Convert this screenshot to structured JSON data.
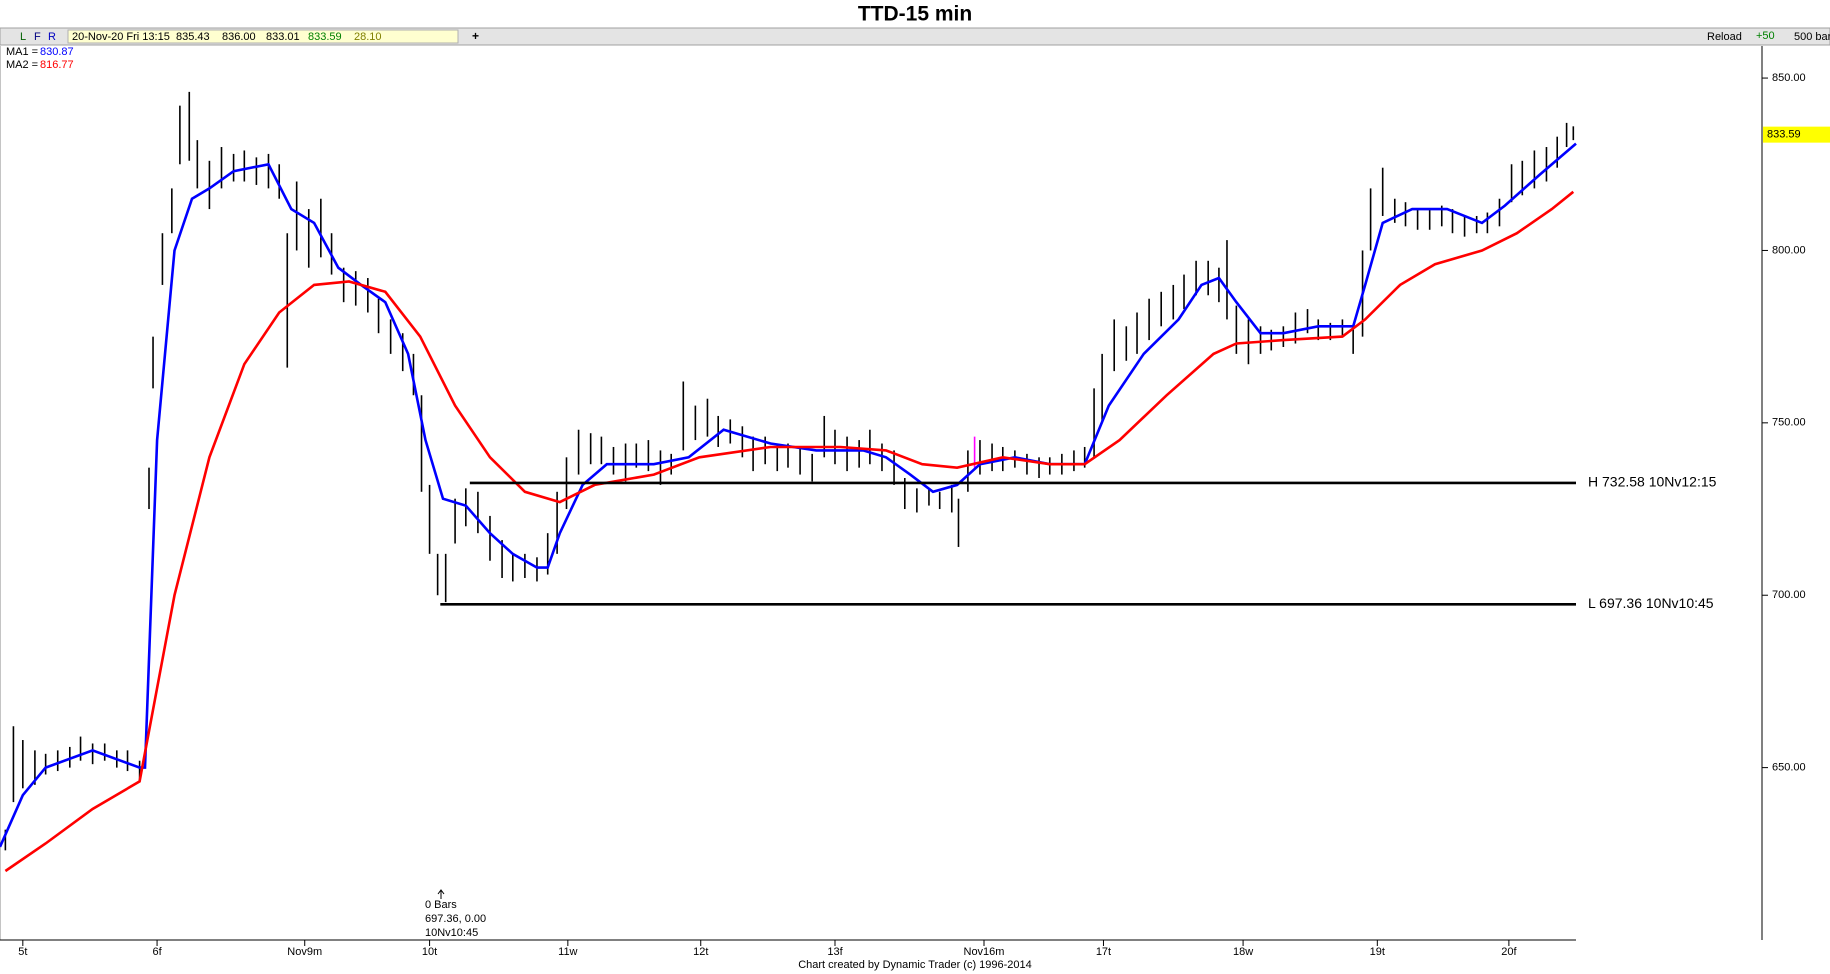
{
  "header": {
    "title": "TTD-15 min"
  },
  "toolbar": {
    "buttons": [
      "L",
      "F",
      "R"
    ],
    "info": [
      "20-Nov-20 Fri 13:15",
      "835.43",
      "836.00",
      "833.01",
      "833.59",
      "28.10"
    ],
    "add": "+",
    "reload": "Reload",
    "step": "+50",
    "bars": "500 bars"
  },
  "footer": "Chart created by Dynamic Trader  (c) 1996-2014",
  "chart_data": {
    "type": "ohlc",
    "xlim": [
      -0.17,
      11.57
    ],
    "ylim": [
      600,
      859.3
    ],
    "xticks": [
      {
        "value": 0,
        "label": "5t"
      },
      {
        "value": 1.0,
        "label": "6f"
      },
      {
        "value": 2.1,
        "label": "Nov9m"
      },
      {
        "value": 3.03,
        "label": "10t"
      },
      {
        "value": 4.06,
        "label": "11w"
      },
      {
        "value": 5.05,
        "label": "12t"
      },
      {
        "value": 6.05,
        "label": "13f"
      },
      {
        "value": 7.16,
        "label": "Nov16m"
      },
      {
        "value": 8.05,
        "label": "17t"
      },
      {
        "value": 9.09,
        "label": "18w"
      },
      {
        "value": 10.09,
        "label": "19t"
      },
      {
        "value": 11.07,
        "label": "20f"
      }
    ],
    "yticks": [
      {
        "value": 650,
        "label": "650.00"
      },
      {
        "value": 700,
        "label": "700.00"
      },
      {
        "value": 750,
        "label": "750.00"
      },
      {
        "value": 800,
        "label": "800.00"
      },
      {
        "value": 850,
        "label": "850.00"
      }
    ],
    "bar_color": "#000000",
    "bars": {
      "x": [
        -0.13,
        -0.07,
        0,
        0.09,
        0.17,
        0.26,
        0.35,
        0.43,
        0.52,
        0.61,
        0.7,
        0.78,
        0.87,
        0.94,
        0.97,
        1.04,
        1.11,
        1.17,
        1.24,
        1.3,
        1.39,
        1.48,
        1.57,
        1.65,
        1.74,
        1.83,
        1.91,
        1.97,
        2.04,
        2.13,
        2.22,
        2.3,
        2.39,
        2.48,
        2.57,
        2.65,
        2.74,
        2.83,
        2.91,
        2.97,
        3.03,
        3.09,
        3.15,
        3.22,
        3.3,
        3.39,
        3.48,
        3.57,
        3.65,
        3.74,
        3.83,
        3.91,
        3.98,
        4.05,
        4.14,
        4.23,
        4.31,
        4.4,
        4.49,
        4.57,
        4.66,
        4.75,
        4.83,
        4.92,
        5.01,
        5.1,
        5.18,
        5.27,
        5.36,
        5.44,
        5.53,
        5.62,
        5.7,
        5.79,
        5.88,
        5.97,
        6.05,
        6.14,
        6.23,
        6.31,
        6.4,
        6.49,
        6.57,
        6.66,
        6.75,
        6.83,
        6.92,
        6.97,
        7.04,
        7.13,
        7.22,
        7.3,
        7.39,
        7.48,
        7.57,
        7.65,
        7.74,
        7.83,
        7.91,
        7.98,
        8.04,
        8.13,
        8.22,
        8.3,
        8.39,
        8.48,
        8.57,
        8.65,
        8.74,
        8.83,
        8.91,
        8.97,
        9.04,
        9.13,
        9.22,
        9.3,
        9.39,
        9.48,
        9.57,
        9.65,
        9.74,
        9.83,
        9.91,
        9.98,
        10.04,
        10.13,
        10.22,
        10.3,
        10.39,
        10.48,
        10.57,
        10.65,
        10.74,
        10.83,
        10.91,
        11.0,
        11.09,
        11.17,
        11.26,
        11.35,
        11.43,
        11.5,
        11.55
      ],
      "high": [
        632,
        662,
        658,
        655,
        654,
        655,
        656,
        659,
        657,
        657,
        655,
        655,
        652,
        737,
        775,
        805,
        818,
        842,
        846,
        832,
        826,
        830,
        828,
        829,
        827,
        828,
        825,
        805,
        820,
        812,
        815,
        805,
        795,
        794,
        792,
        786,
        780,
        776,
        770,
        758,
        732,
        712,
        712,
        728,
        731,
        730,
        723,
        716,
        712,
        712,
        711,
        718,
        730,
        740,
        748,
        747,
        746,
        743,
        744,
        744,
        745,
        742,
        741,
        762,
        755,
        757,
        752,
        751,
        749,
        746,
        746,
        744,
        744,
        743,
        741,
        752,
        748,
        746,
        745,
        748,
        744,
        742,
        734,
        731,
        731,
        730,
        732,
        728,
        742,
        745,
        744,
        743,
        742,
        741,
        740,
        740,
        741,
        742,
        743,
        760,
        770,
        780,
        778,
        782,
        786,
        788,
        790,
        793,
        797,
        797,
        795,
        803,
        784,
        780,
        778,
        777,
        778,
        782,
        783,
        780,
        779,
        780,
        778,
        800,
        818,
        824,
        815,
        814,
        812,
        812,
        813,
        812,
        810,
        810,
        811,
        815,
        825,
        826,
        829,
        830,
        833,
        837,
        836
      ],
      "low": [
        626,
        640,
        644,
        645,
        648,
        649,
        650,
        652,
        651,
        652,
        650,
        649,
        646,
        725,
        760,
        790,
        805,
        825,
        826,
        818,
        812,
        818,
        820,
        820,
        819,
        818,
        815,
        766,
        800,
        795,
        798,
        793,
        785,
        784,
        782,
        776,
        770,
        765,
        758,
        730,
        712,
        700,
        698,
        715,
        720,
        718,
        710,
        705,
        704,
        705,
        704,
        706,
        712,
        725,
        735,
        738,
        738,
        735,
        733,
        737,
        736,
        732,
        735,
        742,
        745,
        746,
        743,
        744,
        740,
        736,
        738,
        736,
        737,
        735,
        733,
        740,
        738,
        736,
        737,
        738,
        736,
        732,
        725,
        724,
        726,
        725,
        724,
        714,
        730,
        735,
        736,
        736,
        737,
        735,
        734,
        735,
        735,
        736,
        737,
        740,
        750,
        765,
        768,
        770,
        774,
        778,
        780,
        783,
        787,
        787,
        785,
        780,
        770,
        767,
        770,
        771,
        772,
        773,
        776,
        774,
        774,
        775,
        770,
        775,
        800,
        810,
        808,
        807,
        806,
        806,
        807,
        805,
        804,
        805,
        805,
        807,
        814,
        816,
        818,
        820,
        824,
        830,
        832
      ]
    },
    "highlight_bar": {
      "x": 7.09,
      "high": 746,
      "low": 737,
      "color": "#ff00ff"
    },
    "series": [
      {
        "name": "MA1 =",
        "last_value": "830.87",
        "color": "#0000ff",
        "x": [
          -0.17,
          0,
          0.17,
          0.52,
          0.87,
          0.91,
          1.0,
          1.13,
          1.26,
          1.39,
          1.57,
          1.83,
          2.0,
          2.17,
          2.35,
          2.52,
          2.7,
          2.87,
          3.0,
          3.13,
          3.3,
          3.48,
          3.65,
          3.83,
          3.91,
          4.0,
          4.17,
          4.35,
          4.7,
          4.96,
          5.22,
          5.57,
          5.91,
          6.26,
          6.43,
          6.61,
          6.78,
          6.96,
          7.13,
          7.39,
          7.65,
          7.91,
          8.09,
          8.35,
          8.61,
          8.78,
          8.91,
          9.04,
          9.22,
          9.39,
          9.65,
          9.91,
          10.0,
          10.13,
          10.35,
          10.61,
          10.87,
          11.04,
          11.3,
          11.57
        ],
        "values": [
          627,
          642,
          650,
          655,
          650,
          650,
          745,
          800,
          815,
          818,
          823,
          825,
          812,
          808,
          795,
          790,
          785,
          770,
          745,
          728,
          726,
          718,
          712,
          708,
          708,
          718,
          732,
          738,
          738,
          740,
          748,
          744,
          742,
          742,
          740,
          735,
          730,
          732,
          738,
          740,
          738,
          738,
          755,
          770,
          780,
          790,
          792,
          785,
          776,
          776,
          778,
          778,
          790,
          808,
          812,
          812,
          808,
          813,
          822,
          831
        ]
      },
      {
        "name": "MA2 =",
        "last_value": "816.77",
        "color": "#ff0000",
        "x": [
          -0.13,
          0.17,
          0.52,
          0.87,
          1.13,
          1.39,
          1.65,
          1.91,
          2.17,
          2.43,
          2.7,
          2.96,
          3.22,
          3.48,
          3.74,
          4.0,
          4.26,
          4.7,
          5.04,
          5.57,
          6.09,
          6.43,
          6.7,
          6.96,
          7.3,
          7.65,
          7.91,
          8.17,
          8.52,
          8.87,
          9.04,
          9.39,
          9.83,
          10.0,
          10.26,
          10.52,
          10.87,
          11.13,
          11.39,
          11.55
        ],
        "values": [
          620,
          628,
          638,
          646,
          700,
          740,
          767,
          782,
          790,
          791,
          788,
          775,
          755,
          740,
          730,
          727,
          732,
          735,
          740,
          743,
          743,
          742,
          738,
          737,
          740,
          738,
          738,
          745,
          758,
          770,
          773,
          774,
          775,
          780,
          790,
          796,
          800,
          805,
          812,
          817
        ]
      }
    ],
    "levels": [
      {
        "value": 732.58,
        "x": 3.33,
        "label": "H 732.58 10Nv12:15"
      },
      {
        "value": 697.36,
        "x": 3.11,
        "label": "L 697.36 10Nv10:45"
      }
    ],
    "last_price": 833.59,
    "cursor_note": [
      "0 Bars",
      "697.36, 0.00",
      "10Nv10:45"
    ]
  }
}
